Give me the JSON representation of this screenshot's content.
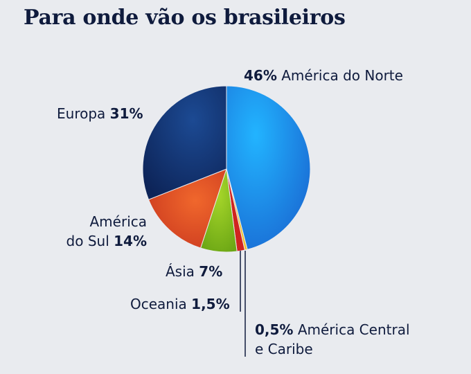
{
  "title": "Para onde vão os brasileiros",
  "chart_data": {
    "type": "pie",
    "title": "Para onde vão os brasileiros",
    "slices": [
      {
        "label": "América do Norte",
        "value": 46,
        "display": "46%",
        "color": "#1e8ff0"
      },
      {
        "label": "América Central e Caribe",
        "value": 0.5,
        "display": "0,5%",
        "color": "#f2c12e"
      },
      {
        "label": "Oceania",
        "value": 1.5,
        "display": "1,5%",
        "color": "#d0241f"
      },
      {
        "label": "Ásia",
        "value": 7,
        "display": "7%",
        "color": "#86c21c"
      },
      {
        "label": "América do Sul",
        "value": 14,
        "display": "14%",
        "color": "#e2542a"
      },
      {
        "label": "Europa",
        "value": 31,
        "display": "31%",
        "color": "#143a7a"
      }
    ]
  },
  "labels": {
    "na": {
      "pct": "46%",
      "name": "América do Norte"
    },
    "eu": {
      "name": "Europa",
      "pct": "31%"
    },
    "sa": {
      "line1": "América",
      "line2": "do Sul",
      "pct": "14%"
    },
    "as": {
      "name": "Ásia",
      "pct": "7%"
    },
    "oc": {
      "name": "Oceania",
      "pct": "1,5%"
    },
    "ca": {
      "pct": "0,5%",
      "line1": "América Central",
      "line2": "e Caribe"
    }
  }
}
